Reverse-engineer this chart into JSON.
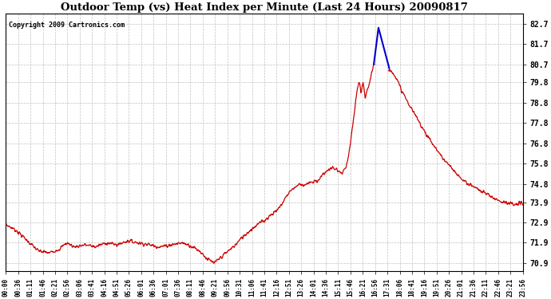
{
  "title": "Outdoor Temp (vs) Heat Index per Minute (Last 24 Hours) 20090817",
  "copyright_text": "Copyright 2009 Cartronics.com",
  "y_ticks": [
    70.9,
    71.9,
    72.9,
    73.9,
    74.8,
    75.8,
    76.8,
    77.8,
    78.8,
    79.8,
    80.7,
    81.7,
    82.7
  ],
  "ylim": [
    70.5,
    83.2
  ],
  "background_color": "#ffffff",
  "grid_color": "#c0c0c0",
  "red_color": "#cc0000",
  "blue_color": "#0000cc",
  "x_labels": [
    "00:00",
    "00:36",
    "01:11",
    "01:46",
    "02:21",
    "02:56",
    "03:06",
    "03:41",
    "04:16",
    "04:51",
    "05:26",
    "06:01",
    "06:36",
    "07:01",
    "07:36",
    "08:11",
    "08:46",
    "09:21",
    "09:56",
    "10:31",
    "11:06",
    "11:41",
    "12:16",
    "12:51",
    "13:26",
    "14:01",
    "14:36",
    "15:11",
    "15:46",
    "16:21",
    "16:56",
    "17:31",
    "18:06",
    "18:41",
    "19:16",
    "19:51",
    "20:26",
    "21:01",
    "21:36",
    "22:11",
    "22:46",
    "23:21",
    "23:56"
  ],
  "figsize": [
    6.9,
    3.75
  ],
  "dpi": 100
}
